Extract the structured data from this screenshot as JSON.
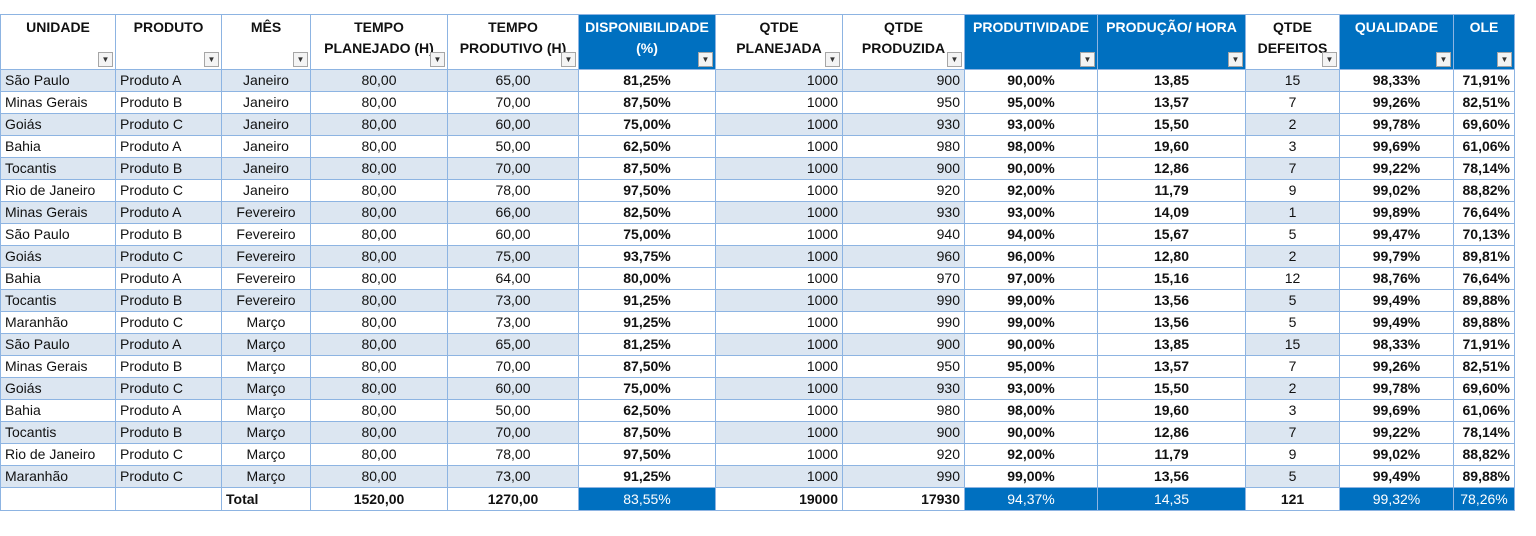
{
  "headers": [
    {
      "l1": "UNIDADE",
      "l2": "",
      "blue": false
    },
    {
      "l1": "PRODUTO",
      "l2": "",
      "blue": false
    },
    {
      "l1": "MÊS",
      "l2": "",
      "blue": false
    },
    {
      "l1": "TEMPO",
      "l2": "PLANEJADO (H)",
      "blue": false
    },
    {
      "l1": "TEMPO",
      "l2": "PRODUTIVO (H)",
      "blue": false
    },
    {
      "l1": "DISPONIBILIDADE",
      "l2": "(%)",
      "blue": true
    },
    {
      "l1": "QTDE",
      "l2": "PLANEJADA",
      "blue": false
    },
    {
      "l1": "QTDE",
      "l2": "PRODUZIDA",
      "blue": false
    },
    {
      "l1": "PRODUTIVIDADE",
      "l2": "",
      "blue": true
    },
    {
      "l1": "PRODUÇÃO/ HORA",
      "l2": "",
      "blue": true
    },
    {
      "l1": "QTDE",
      "l2": "DEFEITOS",
      "blue": false
    },
    {
      "l1": "QUALIDADE",
      "l2": "",
      "blue": true
    },
    {
      "l1": "OLE",
      "l2": "",
      "blue": true
    }
  ],
  "filter_icon": "dropdown-arrow-icon",
  "rows": [
    [
      "São Paulo",
      "Produto A",
      "Janeiro",
      "80,00",
      "65,00",
      "81,25%",
      "1000",
      "900",
      "90,00%",
      "13,85",
      "15",
      "98,33%",
      "71,91%"
    ],
    [
      "Minas Gerais",
      "Produto B",
      "Janeiro",
      "80,00",
      "70,00",
      "87,50%",
      "1000",
      "950",
      "95,00%",
      "13,57",
      "7",
      "99,26%",
      "82,51%"
    ],
    [
      "Goiás",
      "Produto C",
      "Janeiro",
      "80,00",
      "60,00",
      "75,00%",
      "1000",
      "930",
      "93,00%",
      "15,50",
      "2",
      "99,78%",
      "69,60%"
    ],
    [
      "Bahia",
      "Produto A",
      "Janeiro",
      "80,00",
      "50,00",
      "62,50%",
      "1000",
      "980",
      "98,00%",
      "19,60",
      "3",
      "99,69%",
      "61,06%"
    ],
    [
      "Tocantis",
      "Produto B",
      "Janeiro",
      "80,00",
      "70,00",
      "87,50%",
      "1000",
      "900",
      "90,00%",
      "12,86",
      "7",
      "99,22%",
      "78,14%"
    ],
    [
      "Rio de Janeiro",
      "Produto C",
      "Janeiro",
      "80,00",
      "78,00",
      "97,50%",
      "1000",
      "920",
      "92,00%",
      "11,79",
      "9",
      "99,02%",
      "88,82%"
    ],
    [
      "Minas Gerais",
      "Produto A",
      "Fevereiro",
      "80,00",
      "66,00",
      "82,50%",
      "1000",
      "930",
      "93,00%",
      "14,09",
      "1",
      "99,89%",
      "76,64%"
    ],
    [
      "São Paulo",
      "Produto B",
      "Fevereiro",
      "80,00",
      "60,00",
      "75,00%",
      "1000",
      "940",
      "94,00%",
      "15,67",
      "5",
      "99,47%",
      "70,13%"
    ],
    [
      "Goiás",
      "Produto C",
      "Fevereiro",
      "80,00",
      "75,00",
      "93,75%",
      "1000",
      "960",
      "96,00%",
      "12,80",
      "2",
      "99,79%",
      "89,81%"
    ],
    [
      "Bahia",
      "Produto A",
      "Fevereiro",
      "80,00",
      "64,00",
      "80,00%",
      "1000",
      "970",
      "97,00%",
      "15,16",
      "12",
      "98,76%",
      "76,64%"
    ],
    [
      "Tocantis",
      "Produto B",
      "Fevereiro",
      "80,00",
      "73,00",
      "91,25%",
      "1000",
      "990",
      "99,00%",
      "13,56",
      "5",
      "99,49%",
      "89,88%"
    ],
    [
      "Maranhão",
      "Produto C",
      "Março",
      "80,00",
      "73,00",
      "91,25%",
      "1000",
      "990",
      "99,00%",
      "13,56",
      "5",
      "99,49%",
      "89,88%"
    ],
    [
      "São Paulo",
      "Produto A",
      "Março",
      "80,00",
      "65,00",
      "81,25%",
      "1000",
      "900",
      "90,00%",
      "13,85",
      "15",
      "98,33%",
      "71,91%"
    ],
    [
      "Minas Gerais",
      "Produto B",
      "Março",
      "80,00",
      "70,00",
      "87,50%",
      "1000",
      "950",
      "95,00%",
      "13,57",
      "7",
      "99,26%",
      "82,51%"
    ],
    [
      "Goiás",
      "Produto C",
      "Março",
      "80,00",
      "60,00",
      "75,00%",
      "1000",
      "930",
      "93,00%",
      "15,50",
      "2",
      "99,78%",
      "69,60%"
    ],
    [
      "Bahia",
      "Produto A",
      "Março",
      "80,00",
      "50,00",
      "62,50%",
      "1000",
      "980",
      "98,00%",
      "19,60",
      "3",
      "99,69%",
      "61,06%"
    ],
    [
      "Tocantis",
      "Produto B",
      "Março",
      "80,00",
      "70,00",
      "87,50%",
      "1000",
      "900",
      "90,00%",
      "12,86",
      "7",
      "99,22%",
      "78,14%"
    ],
    [
      "Rio de Janeiro",
      "Produto C",
      "Março",
      "80,00",
      "78,00",
      "97,50%",
      "1000",
      "920",
      "92,00%",
      "11,79",
      "9",
      "99,02%",
      "88,82%"
    ],
    [
      "Maranhão",
      "Produto C",
      "Março",
      "80,00",
      "73,00",
      "91,25%",
      "1000",
      "990",
      "99,00%",
      "13,56",
      "5",
      "99,49%",
      "89,88%"
    ]
  ],
  "total": [
    "",
    "",
    "Total",
    "1520,00",
    "1270,00",
    "83,55%",
    "19000",
    "17930",
    "94,37%",
    "14,35",
    "121",
    "99,32%",
    "78,26%"
  ],
  "colors": {
    "header_blue": "#0070c0",
    "band": "#dce6f1",
    "grid": "#8db4e2"
  }
}
